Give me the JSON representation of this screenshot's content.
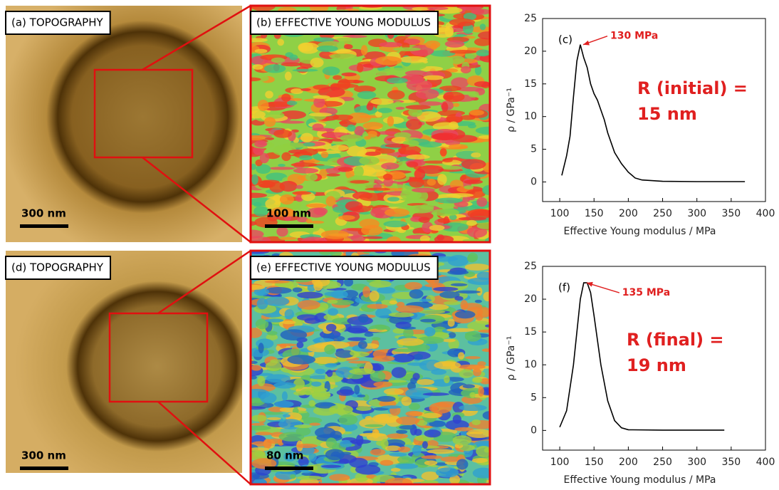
{
  "images": [
    {
      "label": "(a) TOPOGRAPHY",
      "scale_bar": "300 nm"
    },
    {
      "label": "(b) EFFECTIVE YOUNG MODULUS",
      "scale_bar": "100 nm"
    },
    {
      "label": "(d) TOPOGRAPHY",
      "scale_bar": "300 nm"
    },
    {
      "label": "(e) EFFECTIVE YOUNG MODULUS",
      "scale_bar": "80 nm"
    }
  ],
  "chart_data": [
    {
      "type": "line",
      "panel": "(c)",
      "x_label": "Effective Young modulus / MPa",
      "y_label": "ρ / GPa⁻¹",
      "xlim": [
        75,
        400
      ],
      "ylim": [
        -3,
        25
      ],
      "xticks": [
        100,
        150,
        200,
        250,
        300,
        350,
        400
      ],
      "yticks": [
        0,
        5,
        10,
        15,
        20,
        25
      ],
      "color": "#000000",
      "x": [
        103,
        110,
        115,
        120,
        125,
        130,
        135,
        140,
        145,
        150,
        155,
        160,
        165,
        170,
        180,
        190,
        200,
        210,
        220,
        250,
        300,
        370
      ],
      "values": [
        1,
        4,
        7,
        13,
        18.5,
        21,
        19,
        17.5,
        15,
        13.5,
        12.5,
        11,
        9.5,
        7.5,
        4.5,
        2.8,
        1.5,
        0.6,
        0.3,
        0.1,
        0.05,
        0.05
      ],
      "annotation": {
        "text": "130 MPa",
        "x": 130,
        "y": 21,
        "color": "#e02020"
      },
      "note": [
        "R (initial) =",
        "15 nm"
      ]
    },
    {
      "type": "line",
      "panel": "(f)",
      "x_label": "Effective Young modulus / MPa",
      "y_label": "ρ / GPa⁻¹",
      "xlim": [
        75,
        400
      ],
      "ylim": [
        -3,
        25
      ],
      "xticks": [
        100,
        150,
        200,
        250,
        300,
        350,
        400
      ],
      "yticks": [
        0,
        5,
        10,
        15,
        20,
        25
      ],
      "color": "#000000",
      "x": [
        100,
        110,
        120,
        125,
        130,
        135,
        140,
        145,
        150,
        160,
        170,
        180,
        190,
        200,
        250,
        340
      ],
      "values": [
        0.5,
        3,
        10,
        15,
        20,
        22.5,
        22.5,
        21,
        17.5,
        10,
        4.5,
        1.5,
        0.4,
        0.1,
        0.05,
        0.05
      ],
      "annotation": {
        "text": "135 MPa",
        "x": 135,
        "y": 22.5,
        "color": "#e02020"
      },
      "note": [
        "R (final) =",
        "19 nm"
      ]
    }
  ]
}
